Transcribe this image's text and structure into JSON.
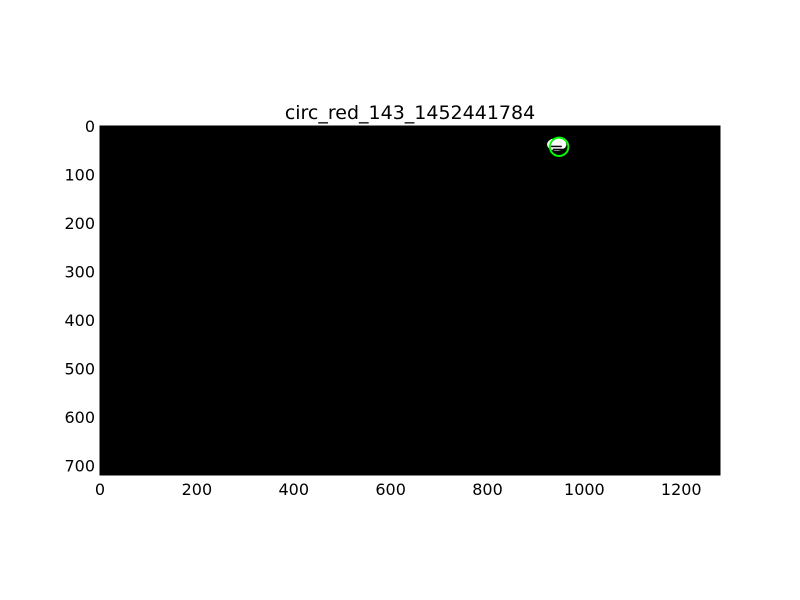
{
  "chart_data": {
    "type": "image",
    "title": "circ_red_143_1452441784",
    "xlabel": "",
    "ylabel": "",
    "xlim": [
      0,
      1280
    ],
    "ylim": [
      720,
      0
    ],
    "x_ticks": [
      0,
      200,
      400,
      600,
      800,
      1000,
      1200
    ],
    "y_ticks": [
      0,
      100,
      200,
      300,
      400,
      500,
      600,
      700
    ],
    "background_color": "#000000",
    "blob": {
      "x": 943,
      "y": 38,
      "rx": 20,
      "ry": 13,
      "color": "#ffffff"
    },
    "detected_circle": {
      "x": 948,
      "y": 43,
      "r": 19,
      "color": "#00ff00"
    },
    "grid": false
  }
}
